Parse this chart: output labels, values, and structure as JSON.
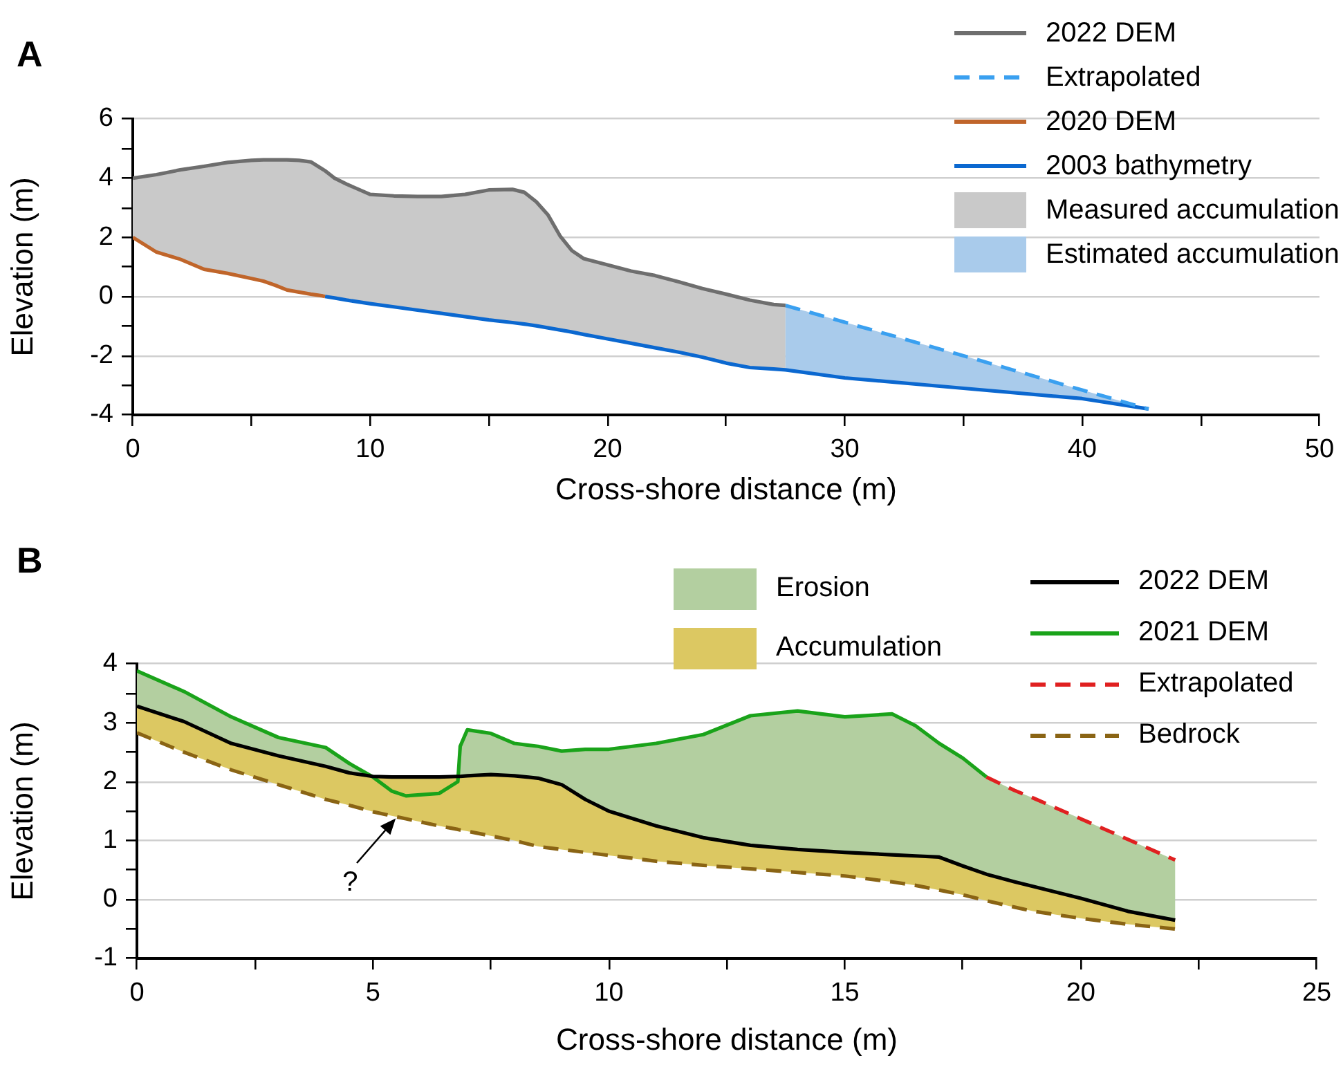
{
  "chart_data": [
    {
      "type": "line",
      "title": "A",
      "xlabel": "Cross-shore distance (m)",
      "ylabel": "Elevation (m)",
      "grid": "y",
      "legend": "top right",
      "xlim": [
        0,
        50
      ],
      "xticks": [
        0,
        {
          "value": 5,
          "label": null
        },
        10,
        {
          "value": 15,
          "label": null
        },
        20,
        {
          "value": 25,
          "label": null
        },
        30,
        {
          "value": 35,
          "label": null
        },
        40,
        {
          "value": 45,
          "label": null
        },
        50
      ],
      "ylim": [
        -4,
        6
      ],
      "yticks": [
        -4,
        {
          "value": -3,
          "label": null
        },
        -2,
        {
          "value": -1,
          "label": null
        },
        0,
        {
          "value": 1,
          "label": null
        },
        2,
        {
          "value": 3,
          "label": null
        },
        4,
        {
          "value": 5,
          "label": null
        },
        6
      ],
      "x": [
        0,
        1,
        2,
        3,
        4,
        5,
        5.5,
        6,
        6.5,
        7,
        7.5,
        8,
        8.1,
        8.5,
        9,
        10,
        11,
        12,
        13,
        14,
        15,
        16,
        16.5,
        17,
        17.5,
        18,
        18.5,
        19,
        20,
        21,
        22,
        23,
        24,
        25,
        26,
        27,
        27.5,
        30,
        35,
        40,
        42.8
      ],
      "series": [
        {
          "name": "2022 DEM",
          "type": "line",
          "color": "#6e6e6e",
          "values": [
            4.0,
            4.12,
            4.28,
            4.4,
            4.53,
            4.6,
            4.62,
            4.62,
            4.62,
            4.6,
            4.55,
            4.3,
            4.25,
            4.0,
            3.8,
            3.45,
            3.4,
            3.38,
            3.38,
            3.45,
            3.6,
            3.62,
            3.52,
            3.2,
            2.75,
            2.05,
            1.55,
            1.28,
            1.07,
            0.86,
            0.71,
            0.5,
            0.27,
            0.08,
            -0.12,
            -0.27,
            -0.3,
            null,
            null,
            null,
            null
          ]
        },
        {
          "name": "Extrapolated",
          "type": "line",
          "line_style": "dashed",
          "color": "#3aa0f0",
          "values": [
            null,
            null,
            null,
            null,
            null,
            null,
            null,
            null,
            null,
            null,
            null,
            null,
            null,
            null,
            null,
            null,
            null,
            null,
            null,
            null,
            null,
            null,
            null,
            null,
            null,
            null,
            null,
            null,
            null,
            null,
            null,
            null,
            null,
            null,
            null,
            null,
            -0.3,
            -0.87,
            -2.0,
            -3.16,
            -3.8
          ]
        },
        {
          "name": "2020 DEM",
          "type": "line",
          "color": "#c0652a",
          "values": [
            2.0,
            1.5,
            1.26,
            0.92,
            0.78,
            0.61,
            0.52,
            0.38,
            0.22,
            0.15,
            0.08,
            0.02,
            0,
            null,
            null,
            null,
            null,
            null,
            null,
            null,
            null,
            null,
            null,
            null,
            null,
            null,
            null,
            null,
            null,
            null,
            null,
            null,
            null,
            null,
            null,
            null,
            null,
            null,
            null,
            null,
            null
          ]
        },
        {
          "name": "2003 bathymetry",
          "type": "line",
          "color": "#0b68d0",
          "values": [
            null,
            null,
            null,
            null,
            null,
            null,
            null,
            null,
            null,
            null,
            null,
            null,
            0,
            -0.05,
            -0.12,
            -0.24,
            -0.35,
            -0.46,
            -0.57,
            -0.68,
            -0.79,
            -0.88,
            -0.93,
            -0.99,
            -1.06,
            -1.13,
            -1.2,
            -1.28,
            -1.43,
            -1.58,
            -1.73,
            -1.88,
            -2.05,
            -2.25,
            -2.4,
            -2.45,
            -2.48,
            -2.75,
            -3.1,
            -3.45,
            -3.8
          ]
        },
        {
          "name": "Measured accumulation",
          "type": "area",
          "color": "#c9c9c9",
          "values": [
            null,
            null,
            null,
            null,
            null,
            null,
            null,
            null,
            null,
            null,
            null,
            null,
            null,
            null,
            null,
            null,
            null,
            null,
            null,
            null,
            null,
            null,
            null,
            null,
            null,
            null,
            null,
            null,
            null,
            null,
            null,
            null,
            null,
            null,
            null,
            null,
            null,
            null,
            null,
            null,
            null
          ],
          "upper": [
            4.0,
            4.12,
            4.28,
            4.4,
            4.53,
            4.6,
            4.62,
            4.62,
            4.62,
            4.6,
            4.55,
            4.3,
            4.25,
            4.0,
            3.8,
            3.45,
            3.4,
            3.38,
            3.38,
            3.45,
            3.6,
            3.62,
            3.52,
            3.2,
            2.75,
            2.05,
            1.55,
            1.28,
            1.07,
            0.86,
            0.71,
            0.5,
            0.27,
            0.08,
            -0.12,
            -0.27,
            -0.3,
            null,
            null,
            null,
            null
          ],
          "lower": [
            2.0,
            1.5,
            1.26,
            0.92,
            0.78,
            0.61,
            0.52,
            0.38,
            0.22,
            0.15,
            0.08,
            0.02,
            0,
            -0.05,
            -0.12,
            -0.24,
            -0.35,
            -0.46,
            -0.57,
            -0.68,
            -0.79,
            -0.88,
            -0.93,
            -0.99,
            -1.06,
            -1.13,
            -1.2,
            -1.28,
            -1.43,
            -1.58,
            -1.73,
            -1.88,
            -2.05,
            -2.25,
            -2.4,
            -2.45,
            -2.48,
            null,
            null,
            null,
            null
          ]
        },
        {
          "name": "Estimated accumulation",
          "type": "area",
          "color": "#a9cbeb",
          "values": [
            null,
            null,
            null,
            null,
            null,
            null,
            null,
            null,
            null,
            null,
            null,
            null,
            null,
            null,
            null,
            null,
            null,
            null,
            null,
            null,
            null,
            null,
            null,
            null,
            null,
            null,
            null,
            null,
            null,
            null,
            null,
            null,
            null,
            null,
            null,
            null,
            null,
            null,
            null,
            null,
            null
          ],
          "upper": [
            null,
            null,
            null,
            null,
            null,
            null,
            null,
            null,
            null,
            null,
            null,
            null,
            null,
            null,
            null,
            null,
            null,
            null,
            null,
            null,
            null,
            null,
            null,
            null,
            null,
            null,
            null,
            null,
            null,
            null,
            null,
            null,
            null,
            null,
            null,
            null,
            -0.3,
            -0.87,
            -2.0,
            -3.16,
            -3.8
          ],
          "lower": [
            null,
            null,
            null,
            null,
            null,
            null,
            null,
            null,
            null,
            null,
            null,
            null,
            null,
            null,
            null,
            null,
            null,
            null,
            null,
            null,
            null,
            null,
            null,
            null,
            null,
            null,
            null,
            null,
            null,
            null,
            null,
            null,
            null,
            null,
            null,
            null,
            -2.48,
            -2.75,
            -3.1,
            -3.45,
            -3.8
          ]
        }
      ]
    },
    {
      "type": "line",
      "title": "B",
      "xlabel": "Cross-shore distance (m)",
      "ylabel": "Elevation (m)",
      "grid": "y",
      "legend": "top right",
      "xlim": [
        0,
        25
      ],
      "xticks": [
        0,
        {
          "value": 2.5,
          "label": null
        },
        5,
        {
          "value": 7.5,
          "label": null
        },
        10,
        {
          "value": 12.5,
          "label": null
        },
        15,
        {
          "value": 17.5,
          "label": null
        },
        20,
        {
          "value": 22.5,
          "label": null
        },
        25
      ],
      "ylim": [
        -1,
        4
      ],
      "yticks": [
        -1,
        {
          "value": -0.5,
          "label": null
        },
        0,
        {
          "value": 0.5,
          "label": null
        },
        1,
        {
          "value": 1.5,
          "label": null
        },
        2,
        {
          "value": 2.5,
          "label": null
        },
        3,
        {
          "value": 3.5,
          "label": null
        },
        4
      ],
      "x": [
        0,
        1,
        2,
        3,
        4,
        4.5,
        5,
        5.4,
        5.7,
        6.4,
        6.8,
        6.85,
        7,
        7.5,
        8,
        8.5,
        9,
        9.5,
        10,
        11,
        12,
        13,
        14,
        15,
        16,
        16.5,
        17,
        17.5,
        18,
        18.6,
        19,
        20,
        21,
        22
      ],
      "annotations": [
        {
          "text": "?",
          "x": 5.5,
          "y": 1.42
        }
      ],
      "series": [
        {
          "name": "Erosion",
          "type": "area",
          "color": "#b3cfa0",
          "values": [
            null,
            null,
            null,
            null,
            null,
            null,
            null,
            null,
            null,
            null,
            null,
            null,
            null,
            null,
            null,
            null,
            null,
            null,
            null,
            null,
            null,
            null,
            null,
            null,
            null,
            null,
            null,
            null,
            null,
            null,
            null,
            null,
            null,
            null
          ],
          "upper": [
            3.88,
            3.53,
            3.1,
            2.75,
            2.58,
            2.31,
            2.08,
            1.84,
            1.76,
            1.8,
            2.0,
            2.6,
            2.88,
            2.82,
            2.65,
            2.6,
            2.52,
            2.55,
            2.55,
            2.65,
            2.8,
            3.12,
            3.2,
            3.1,
            3.15,
            2.95,
            2.65,
            2.4,
            2.08,
            1.85,
            1.72,
            1.37,
            1.02,
            0.67
          ],
          "lower": [
            3.28,
            3.02,
            2.65,
            2.44,
            2.26,
            2.15,
            2.08,
            1.84,
            1.76,
            1.8,
            2.0,
            2.09,
            2.1,
            2.12,
            2.1,
            2.06,
            1.95,
            1.7,
            1.5,
            1.25,
            1.05,
            0.92,
            0.85,
            0.8,
            0.76,
            0.74,
            0.72,
            0.57,
            0.43,
            0.3,
            0.22,
            0.02,
            -0.2,
            -0.35
          ]
        },
        {
          "name": "Accumulation",
          "type": "area",
          "color": "#dcc862",
          "values": [
            null,
            null,
            null,
            null,
            null,
            null,
            null,
            null,
            null,
            null,
            null,
            null,
            null,
            null,
            null,
            null,
            null,
            null,
            null,
            null,
            null,
            null,
            null,
            null,
            null,
            null,
            null,
            null,
            null,
            null,
            null,
            null,
            null,
            null
          ],
          "upper": [
            3.28,
            3.02,
            2.65,
            2.44,
            2.26,
            2.15,
            2.09,
            2.08,
            2.08,
            2.08,
            2.09,
            2.09,
            2.1,
            2.12,
            2.1,
            2.06,
            1.95,
            1.7,
            1.5,
            1.25,
            1.05,
            0.92,
            0.85,
            0.8,
            0.76,
            0.74,
            0.72,
            0.57,
            0.43,
            0.3,
            0.22,
            0.02,
            -0.2,
            -0.35
          ],
          "lower": [
            2.83,
            2.5,
            2.2,
            1.95,
            1.7,
            1.6,
            1.49,
            1.42,
            1.37,
            1.25,
            1.19,
            1.18,
            1.16,
            1.08,
            1.0,
            0.9,
            0.85,
            0.8,
            0.75,
            0.65,
            0.58,
            0.52,
            0.46,
            0.4,
            0.3,
            0.24,
            0.16,
            0.08,
            -0.02,
            -0.13,
            -0.2,
            -0.32,
            -0.42,
            -0.5
          ]
        },
        {
          "name": "2022 DEM",
          "type": "line",
          "color": "#000000",
          "values": [
            3.28,
            3.02,
            2.65,
            2.44,
            2.26,
            2.15,
            2.09,
            2.08,
            2.08,
            2.08,
            2.09,
            2.09,
            2.1,
            2.12,
            2.1,
            2.06,
            1.95,
            1.7,
            1.5,
            1.25,
            1.05,
            0.92,
            0.85,
            0.8,
            0.76,
            0.74,
            0.72,
            0.57,
            0.43,
            0.3,
            0.22,
            0.02,
            -0.2,
            -0.35
          ]
        },
        {
          "name": "2021 DEM",
          "type": "line",
          "color": "#1aa31a",
          "values": [
            3.88,
            3.53,
            3.1,
            2.75,
            2.58,
            2.31,
            2.08,
            1.84,
            1.76,
            1.8,
            2.0,
            2.6,
            2.88,
            2.82,
            2.65,
            2.6,
            2.52,
            2.55,
            2.55,
            2.65,
            2.8,
            3.12,
            3.2,
            3.1,
            3.15,
            2.95,
            2.65,
            2.4,
            2.08,
            null,
            null,
            null,
            null,
            null
          ]
        },
        {
          "name": "Extrapolated",
          "type": "line",
          "line_style": "dashed",
          "color": "#e02020",
          "values": [
            null,
            null,
            null,
            null,
            null,
            null,
            null,
            null,
            null,
            null,
            null,
            null,
            null,
            null,
            null,
            null,
            null,
            null,
            null,
            null,
            null,
            null,
            null,
            null,
            null,
            null,
            null,
            null,
            2.08,
            1.85,
            1.72,
            1.37,
            1.02,
            0.67
          ]
        },
        {
          "name": "Bedrock",
          "type": "line",
          "line_style": "dashed",
          "color": "#8a6414",
          "values": [
            2.83,
            2.5,
            2.2,
            1.95,
            1.7,
            1.6,
            1.49,
            1.42,
            1.37,
            1.25,
            1.19,
            1.18,
            1.16,
            1.08,
            1.0,
            0.9,
            0.85,
            0.8,
            0.75,
            0.65,
            0.58,
            0.52,
            0.46,
            0.4,
            0.3,
            0.24,
            0.16,
            0.08,
            -0.02,
            -0.13,
            -0.2,
            -0.32,
            -0.42,
            -0.5
          ]
        }
      ]
    }
  ]
}
